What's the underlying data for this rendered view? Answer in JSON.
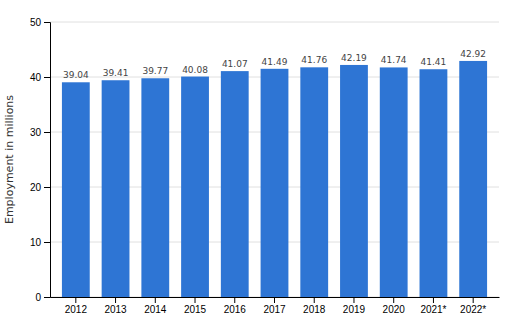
{
  "chart_data": {
    "type": "bar",
    "categories": [
      "2012",
      "2013",
      "2014",
      "2015",
      "2016",
      "2017",
      "2018",
      "2019",
      "2020",
      "2021*",
      "2022*"
    ],
    "values": [
      39.04,
      39.41,
      39.77,
      40.08,
      41.07,
      41.49,
      41.76,
      42.19,
      41.74,
      41.41,
      42.92
    ],
    "color": "#2e75d4",
    "ylabel": "Employment in millions",
    "ylim": [
      0,
      50
    ],
    "yticks": [
      0,
      10,
      20,
      30,
      40,
      50
    ],
    "grid": true,
    "data_labels": true
  }
}
